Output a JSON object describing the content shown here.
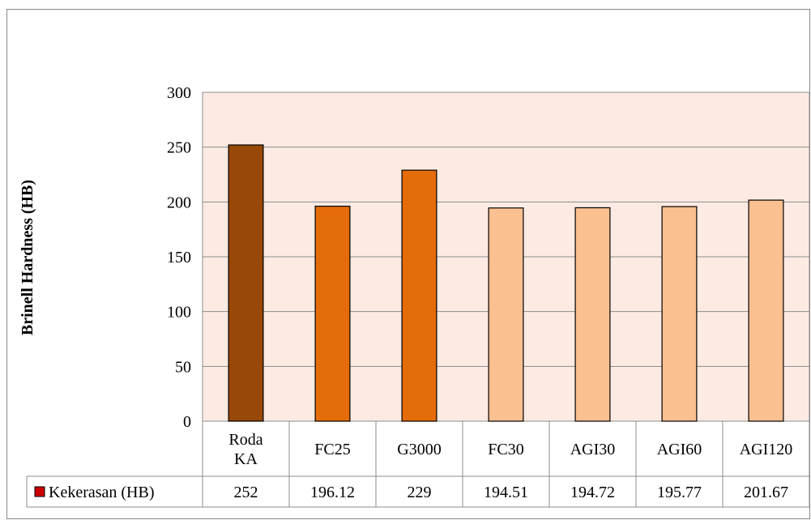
{
  "chart_data": {
    "type": "bar",
    "title": "",
    "xlabel": "",
    "ylabel": "Brinell Hardness (HB)",
    "ylim": [
      0,
      300
    ],
    "yticks": [
      0,
      50,
      100,
      150,
      200,
      250,
      300
    ],
    "grid": true,
    "categories": [
      "Roda KA",
      "FC25",
      "G3000",
      "FC30",
      "AGI30",
      "AGI60",
      "AGI120"
    ],
    "category_lines": [
      [
        "Roda",
        "KA"
      ],
      [
        "FC25"
      ],
      [
        "G3000"
      ],
      [
        "FC30"
      ],
      [
        "AGI30"
      ],
      [
        "AGI60"
      ],
      [
        "AGI120"
      ]
    ],
    "series": [
      {
        "name": "Kekerasan (HB)",
        "values": [
          252,
          196.12,
          229,
          194.51,
          194.72,
          195.77,
          201.67
        ],
        "value_labels": [
          "252",
          "196.12",
          "229",
          "194.51",
          "194.72",
          "195.77",
          "201.67"
        ],
        "legend_color": "#cc0000",
        "bar_colors": [
          "#984807",
          "#e46c0a",
          "#e46c0a",
          "#fac090",
          "#fac090",
          "#fac090",
          "#fac090"
        ]
      }
    ],
    "plot_background": "#fdebe3",
    "legend": "data-table"
  }
}
